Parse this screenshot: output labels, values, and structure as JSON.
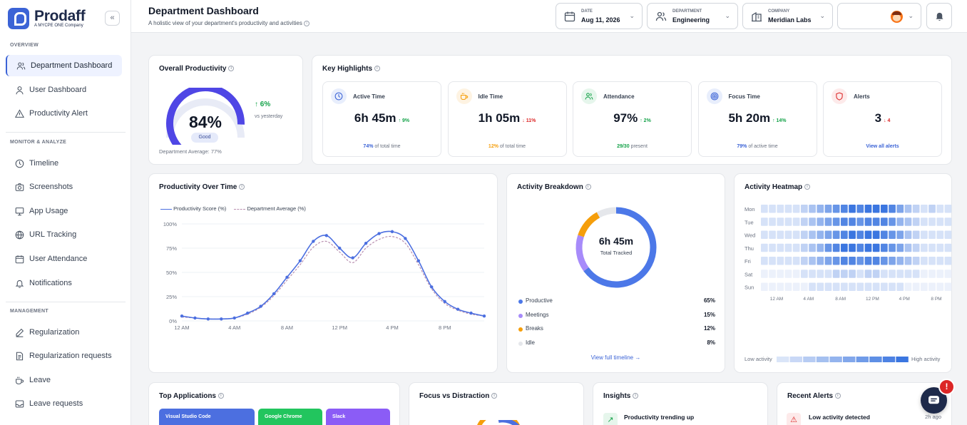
{
  "brand": {
    "name": "Prodaff",
    "tagline": "A MYCPE ONE Company"
  },
  "sidebar": {
    "collapse_icon": "chevrons-left-icon",
    "sections": [
      {
        "label": "OVERVIEW",
        "items": [
          {
            "label": "Department Dashboard",
            "icon": "users-icon",
            "active": true
          },
          {
            "label": "User Dashboard",
            "icon": "user-icon"
          },
          {
            "label": "Productivity Alert",
            "icon": "warning-icon"
          }
        ]
      },
      {
        "label": "MONITOR & ANALYZE",
        "items": [
          {
            "label": "Timeline",
            "icon": "clock-icon"
          },
          {
            "label": "Screenshots",
            "icon": "camera-icon"
          },
          {
            "label": "App Usage",
            "icon": "monitor-icon"
          },
          {
            "label": "URL Tracking",
            "icon": "globe-icon"
          },
          {
            "label": "User Attendance",
            "icon": "calendar-icon"
          },
          {
            "label": "Notifications",
            "icon": "bell-icon"
          }
        ]
      },
      {
        "label": "MANAGEMENT",
        "items": [
          {
            "label": "Regularization",
            "icon": "edit-icon"
          },
          {
            "label": "Regularization requests",
            "icon": "document-icon"
          },
          {
            "label": "Leave",
            "icon": "coffee-icon"
          },
          {
            "label": "Leave requests",
            "icon": "inbox-icon"
          }
        ]
      }
    ]
  },
  "header": {
    "title": "Department Dashboard",
    "subtitle": "A holistic view of your department's productivity and activities",
    "filters": [
      {
        "caption": "DATE",
        "value": "Aug 11, 2026",
        "icon": "calendar-icon"
      },
      {
        "caption": "DEPARTMENT",
        "value": "Engineering",
        "icon": "users-icon"
      },
      {
        "caption": "COMPANY",
        "value": "Meridian Labs",
        "icon": "building-icon"
      }
    ],
    "user_icon": "avatar-icon",
    "notification_icon": "bell-icon"
  },
  "overall": {
    "title": "Overall Productivity",
    "value": "84%",
    "fraction": 0.84,
    "badge": "Good",
    "delta": "6%",
    "delta_caption": "vs yesterday",
    "dept_avg": "Department Average: 77%"
  },
  "highlights": {
    "title": "Key Highlights",
    "cards": [
      {
        "label": "Active Time",
        "value": "6h 45m",
        "delta": "↑ 9%",
        "delta_color": "#16a34a",
        "foot_strong": "74%",
        "foot_rest": "of total time",
        "foot_color": "#3b63d6",
        "icon": "clock-icon",
        "icon_color": "#3b63d6",
        "icon_bg": "#e8eefc"
      },
      {
        "label": "Idle Time",
        "value": "1h 05m",
        "delta": "↓ 11%",
        "delta_color": "#dc2626",
        "foot_strong": "12%",
        "foot_rest": "of total time",
        "foot_color": "#f59e0b",
        "icon": "coffee-icon",
        "icon_color": "#f59e0b",
        "icon_bg": "#fef3e2"
      },
      {
        "label": "Attendance",
        "value": "97%",
        "delta": "↑ 2%",
        "delta_color": "#16a34a",
        "foot_strong": "29/30",
        "foot_rest": "present",
        "foot_color": "#16a34a",
        "icon": "users-icon",
        "icon_color": "#16a34a",
        "icon_bg": "#e6f6ec"
      },
      {
        "label": "Focus Time",
        "value": "5h 20m",
        "delta": "↑ 14%",
        "delta_color": "#16a34a",
        "foot_strong": "79%",
        "foot_rest": "of active time",
        "foot_color": "#3b63d6",
        "icon": "target-icon",
        "icon_color": "#3b63d6",
        "icon_bg": "#e8eefc"
      },
      {
        "label": "Alerts",
        "value": "3",
        "delta": "↓ 4",
        "delta_color": "#dc2626",
        "foot_strong": "View all alerts",
        "foot_rest": "",
        "foot_color": "#3b63d6",
        "icon": "shield-icon",
        "icon_color": "#dc2626",
        "icon_bg": "#fdeaea"
      }
    ]
  },
  "productivity_over_time": {
    "title": "Productivity Over Time",
    "chart_data": {
      "type": "line",
      "x_ticks": [
        "12 AM",
        "4 AM",
        "8 AM",
        "12 PM",
        "4 PM",
        "8 PM"
      ],
      "y_ticks": [
        "100%",
        "75%",
        "50%",
        "25%",
        "0%"
      ],
      "ylim": [
        0,
        100
      ],
      "xlim": [
        0,
        23
      ],
      "series": [
        {
          "name": "Productivity Score (%)",
          "color": "#4c6fe0",
          "x": [
            0,
            1,
            2,
            3,
            4,
            5,
            6,
            7,
            8,
            9,
            10,
            11,
            12,
            13,
            14,
            15,
            16,
            17,
            18,
            19,
            20,
            21,
            22,
            23
          ],
          "values": [
            5,
            3,
            2,
            2,
            3,
            8,
            15,
            28,
            45,
            62,
            82,
            88,
            75,
            65,
            80,
            90,
            92,
            85,
            62,
            35,
            20,
            12,
            8,
            5
          ]
        },
        {
          "name": "Department Average (%)",
          "color": "#b98fb0",
          "dashed": true,
          "x": [
            0,
            1,
            2,
            3,
            4,
            5,
            6,
            7,
            8,
            9,
            10,
            11,
            12,
            13,
            14,
            15,
            16,
            17,
            18,
            19,
            20,
            21,
            22,
            23
          ],
          "values": [
            4,
            3,
            2,
            2,
            3,
            7,
            14,
            26,
            42,
            58,
            76,
            82,
            71,
            60,
            75,
            84,
            87,
            80,
            58,
            33,
            18,
            11,
            7,
            5
          ]
        }
      ]
    }
  },
  "activity_breakdown": {
    "title": "Activity Breakdown",
    "center_value": "6h 45m",
    "center_caption": "Total Tracked",
    "link": "View full timeline →",
    "chart_data": {
      "type": "pie",
      "labels": [
        "Productive",
        "Meetings",
        "Breaks",
        "Idle"
      ],
      "values": [
        65,
        15,
        12,
        8
      ],
      "colors": [
        "#4c78e8",
        "#a78bfa",
        "#f59e0b",
        "#e5e7eb"
      ],
      "pct_labels": [
        "65%",
        "15%",
        "12%",
        "8%"
      ]
    }
  },
  "heatmap": {
    "title": "Activity Heatmap",
    "low_label": "Low activity",
    "high_label": "High activity",
    "chart_data": {
      "type": "heatmap",
      "rows": [
        "Mon",
        "Tue",
        "Wed",
        "Thu",
        "Fri",
        "Sat",
        "Sun"
      ],
      "x_ticks": [
        "12 AM",
        "4 AM",
        "8 AM",
        "12 PM",
        "4 PM",
        "8 PM"
      ],
      "values": [
        [
          1,
          1,
          1,
          1,
          1,
          2,
          3,
          4,
          5,
          6,
          7,
          8,
          7,
          8,
          8,
          8,
          7,
          5,
          3,
          2,
          1,
          2,
          1,
          1
        ],
        [
          1,
          1,
          1,
          1,
          1,
          2,
          3,
          4,
          5,
          6,
          7,
          7,
          6,
          7,
          7,
          7,
          6,
          4,
          3,
          2,
          1,
          1,
          1,
          1
        ],
        [
          1,
          1,
          1,
          1,
          1,
          2,
          3,
          4,
          5,
          6,
          7,
          8,
          7,
          8,
          8,
          7,
          6,
          5,
          3,
          2,
          1,
          1,
          1,
          1
        ],
        [
          1,
          1,
          1,
          1,
          1,
          2,
          3,
          4,
          6,
          7,
          8,
          8,
          7,
          8,
          8,
          7,
          6,
          5,
          3,
          2,
          1,
          1,
          1,
          1
        ],
        [
          1,
          1,
          1,
          1,
          1,
          2,
          3,
          4,
          5,
          6,
          7,
          7,
          6,
          7,
          7,
          6,
          5,
          4,
          3,
          2,
          1,
          1,
          1,
          1
        ],
        [
          0,
          0,
          0,
          0,
          0,
          1,
          1,
          1,
          1,
          2,
          2,
          2,
          1,
          2,
          2,
          1,
          1,
          1,
          1,
          1,
          0,
          0,
          0,
          0
        ],
        [
          0,
          0,
          0,
          0,
          0,
          0,
          1,
          1,
          1,
          1,
          1,
          1,
          1,
          1,
          1,
          1,
          1,
          1,
          0,
          0,
          0,
          0,
          0,
          0
        ]
      ],
      "scale_max": 8
    }
  },
  "bottom": {
    "top_apps_title": "Top Applications",
    "apps": [
      {
        "label": "Visual Studio Code",
        "color": "#4c6fe0"
      },
      {
        "label": "Google Chrome",
        "color": "#22c55e"
      },
      {
        "label": "Slack",
        "color": "#8b5cf6"
      }
    ],
    "focus_title": "Focus vs Distraction",
    "insights_title": "Insights",
    "insight_heading": "Productivity trending up",
    "alerts_title": "Recent Alerts",
    "alert_heading": "Low activity detected",
    "alert_time": "2h ago"
  },
  "chat": {
    "badge": "!",
    "icon": "chat-icon"
  }
}
